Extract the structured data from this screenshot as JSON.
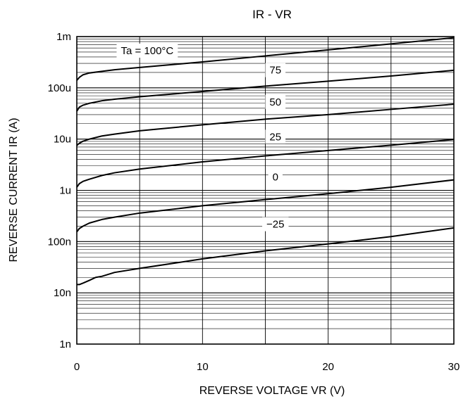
{
  "chart_data": {
    "type": "line",
    "title": "IR - VR",
    "xlabel": "REVERSE VOLTAGE  VR (V)",
    "ylabel": "REVERSE CURRENT IR (A)",
    "x_scale": "linear",
    "y_scale": "log",
    "xlim": [
      0,
      30
    ],
    "ylim": [
      1e-09,
      0.001
    ],
    "x_ticks": [
      0,
      10,
      20,
      30
    ],
    "x_tick_labels": [
      "0",
      "10",
      "20",
      "30"
    ],
    "y_ticks": [
      1e-09,
      1e-08,
      1e-07,
      1e-06,
      1e-05,
      0.0001,
      0.001
    ],
    "y_tick_labels": [
      "1n",
      "10n",
      "100n",
      "1u",
      "10u",
      "100u",
      "1m"
    ],
    "grid": true,
    "series": [
      {
        "name": "Ta = 100°C",
        "label_x": 5.6,
        "x": [
          0,
          0.2,
          0.5,
          1,
          2,
          3,
          5,
          10,
          15,
          20,
          25,
          30
        ],
        "y": [
          0.00014,
          0.00016,
          0.00018,
          0.000195,
          0.00021,
          0.000225,
          0.00025,
          0.00032,
          0.00042,
          0.00055,
          0.00072,
          0.00095
        ]
      },
      {
        "name": "75",
        "label_x": 15.8,
        "x": [
          0,
          0.2,
          0.5,
          1,
          2,
          3,
          5,
          10,
          15,
          20,
          25,
          30
        ],
        "y": [
          3.5e-05,
          4.2e-05,
          4.6e-05,
          5e-05,
          5.6e-05,
          6e-05,
          6.7e-05,
          8.5e-05,
          0.000108,
          0.000135,
          0.00017,
          0.00022
        ]
      },
      {
        "name": "50",
        "label_x": 15.8,
        "x": [
          0,
          0.2,
          0.5,
          1,
          2,
          3,
          5,
          10,
          15,
          20,
          25,
          30
        ],
        "y": [
          7.5e-06,
          8.3e-06,
          9.1e-06,
          1e-05,
          1.15e-05,
          1.25e-05,
          1.45e-05,
          1.9e-05,
          2.45e-05,
          3e-05,
          3.8e-05,
          4.8e-05
        ]
      },
      {
        "name": "25",
        "label_x": 15.8,
        "x": [
          0,
          0.2,
          0.5,
          1,
          2,
          3,
          5,
          10,
          15,
          20,
          25,
          30
        ],
        "y": [
          1.15e-06,
          1.35e-06,
          1.5e-06,
          1.65e-06,
          1.95e-06,
          2.2e-06,
          2.6e-06,
          3.6e-06,
          4.7e-06,
          6e-06,
          7.6e-06,
          9.8e-06
        ]
      },
      {
        "name": "0",
        "label_x": 15.8,
        "x": [
          0,
          0.2,
          0.5,
          1,
          2,
          3,
          5,
          10,
          15,
          20,
          25,
          30
        ],
        "y": [
          1.55e-07,
          1.8e-07,
          2e-07,
          2.3e-07,
          2.7e-07,
          3e-07,
          3.6e-07,
          5e-07,
          6.6e-07,
          8.6e-07,
          1.15e-06,
          1.6e-06
        ]
      },
      {
        "name": "−25",
        "label_x": 15.8,
        "x": [
          0,
          0.2,
          0.5,
          1,
          1.5,
          2,
          3,
          5,
          10,
          15,
          20,
          25,
          30
        ],
        "y": [
          1.45e-08,
          1.45e-08,
          1.55e-08,
          1.75e-08,
          2e-08,
          2.1e-08,
          2.5e-08,
          3e-08,
          4.6e-08,
          6.6e-08,
          9e-08,
          1.25e-07,
          1.85e-07
        ]
      }
    ]
  }
}
